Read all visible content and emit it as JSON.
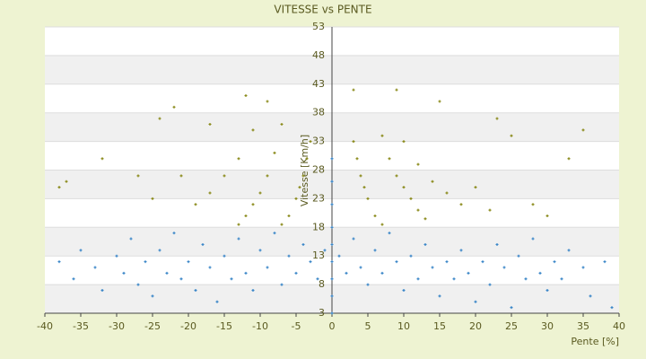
{
  "chart_data": {
    "type": "scatter",
    "title": "VITESSE vs PENTE",
    "x_label": "Pente [%]",
    "y_label": "Vitesse [Km/h]",
    "xlim": [
      -40,
      40
    ],
    "xticks": [
      -40,
      -35,
      -30,
      -25,
      -20,
      -15,
      -10,
      -5,
      0,
      5,
      10,
      15,
      20,
      25,
      30,
      35,
      40
    ],
    "ylim": [
      3,
      53
    ],
    "yticks": [
      3,
      8,
      13,
      18,
      23,
      28,
      33,
      38,
      43,
      48,
      53
    ],
    "grid": "banded",
    "series": [
      {
        "color": "#3a86c8",
        "x": [
          -38,
          -36,
          -35,
          -33,
          -32,
          -30,
          -29,
          -28,
          -27,
          -26,
          -25,
          -24,
          -23,
          -22,
          -21,
          -20,
          -19,
          -18,
          -17,
          -16,
          -15,
          -14,
          -13,
          -12,
          -11,
          -10,
          -9,
          -8,
          -7,
          -6,
          -5,
          -4,
          -3,
          -2,
          -1,
          0,
          0,
          0,
          0,
          0,
          0,
          0,
          0,
          0,
          1,
          2,
          3,
          4,
          5,
          6,
          7,
          8,
          9,
          10,
          11,
          12,
          13,
          14,
          15,
          16,
          17,
          18,
          19,
          20,
          21,
          22,
          23,
          24,
          25,
          26,
          27,
          28,
          29,
          30,
          31,
          32,
          33,
          35,
          36,
          38,
          39
        ],
        "values": [
          12,
          9,
          14,
          11,
          7,
          13,
          10,
          16,
          8,
          12,
          6,
          14,
          10,
          17,
          9,
          12,
          7,
          15,
          11,
          5,
          13,
          9,
          16,
          10,
          7,
          14,
          11,
          17,
          8,
          13,
          10,
          15,
          12,
          9,
          14,
          3,
          6,
          9,
          12,
          15,
          18,
          22,
          26,
          30,
          13,
          10,
          16,
          11,
          8,
          14,
          10,
          17,
          12,
          7,
          13,
          9,
          15,
          11,
          6,
          12,
          9,
          14,
          10,
          5,
          12,
          8,
          15,
          11,
          4,
          13,
          9,
          16,
          10,
          7,
          12,
          9,
          14,
          11,
          6,
          12,
          4
        ]
      },
      {
        "color": "#8a8a1a",
        "x": [
          -3,
          -3.5,
          -4,
          -4.5,
          -5,
          -6,
          -7,
          -7,
          -8,
          -9,
          -10,
          -11,
          -12,
          -13,
          -11,
          -13,
          -15,
          -17,
          -19,
          -12,
          -9,
          -17,
          -22,
          -24,
          -32,
          -38,
          -37,
          -27,
          -21,
          -25,
          3,
          3.5,
          4,
          4.5,
          5,
          6,
          7,
          7,
          8,
          9,
          10,
          11,
          12,
          13,
          10,
          12,
          14,
          16,
          18,
          3,
          9,
          15,
          23,
          25,
          28,
          30,
          35,
          33,
          20,
          22
        ],
        "values": [
          33,
          30,
          27,
          25,
          23,
          20,
          18.5,
          36,
          31,
          27,
          24,
          22,
          20,
          18.5,
          35,
          30,
          27,
          24,
          22,
          41,
          40,
          36,
          39,
          37,
          30,
          25,
          26,
          27,
          27,
          23,
          33,
          30,
          27,
          25,
          23,
          20,
          18.5,
          34,
          30,
          27,
          25,
          23,
          21,
          19.5,
          33,
          29,
          26,
          24,
          22,
          42,
          42,
          40,
          37,
          34,
          22,
          20,
          35,
          30,
          25,
          21
        ]
      }
    ]
  }
}
